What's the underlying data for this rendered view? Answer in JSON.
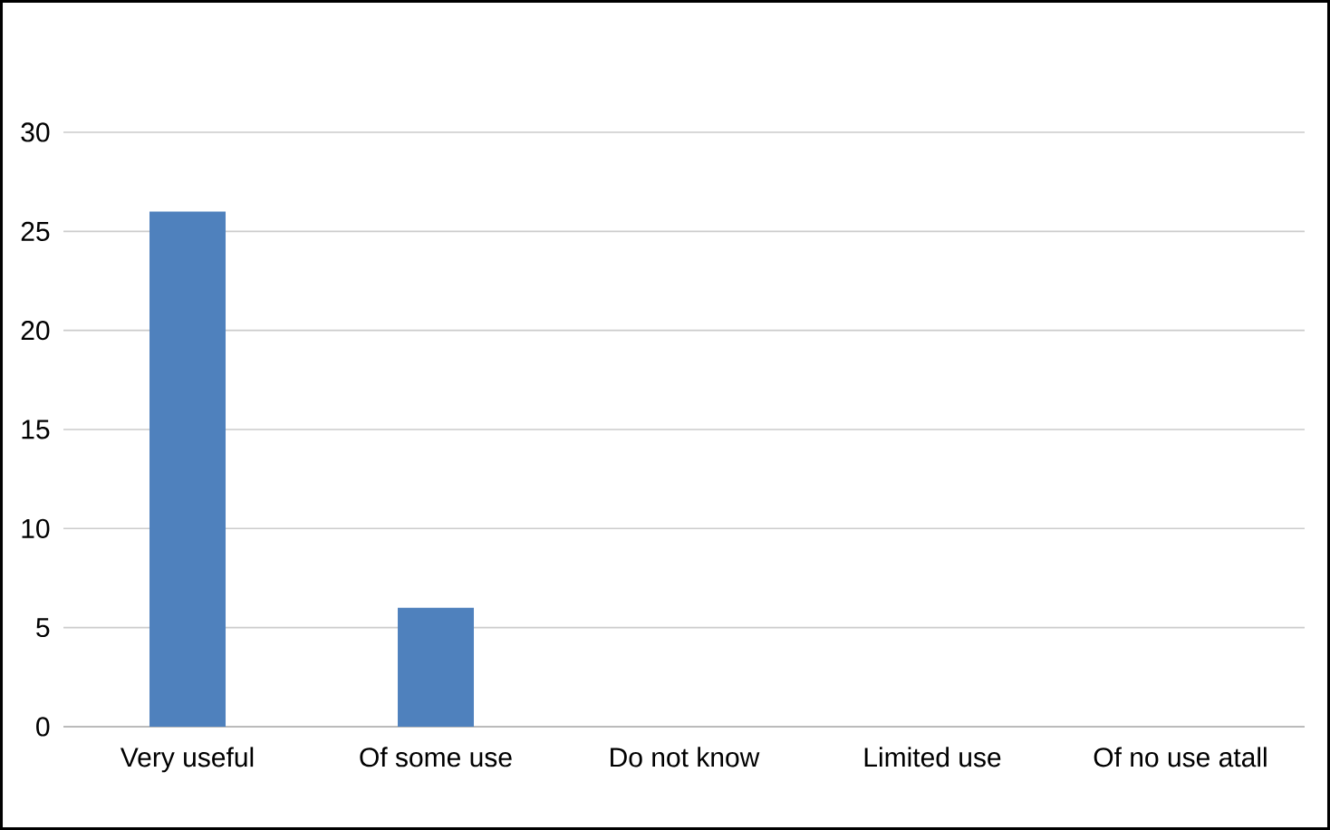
{
  "chart_data": {
    "type": "bar",
    "categories": [
      "Very useful",
      "Of some use",
      "Do not know",
      "Limited use",
      "Of no use atall"
    ],
    "values": [
      26,
      6,
      0,
      0,
      0
    ],
    "color": "#4f81bd",
    "ylim": [
      0,
      30
    ],
    "yticks": [
      0,
      5,
      10,
      15,
      20,
      25,
      30
    ],
    "grid": "y"
  }
}
